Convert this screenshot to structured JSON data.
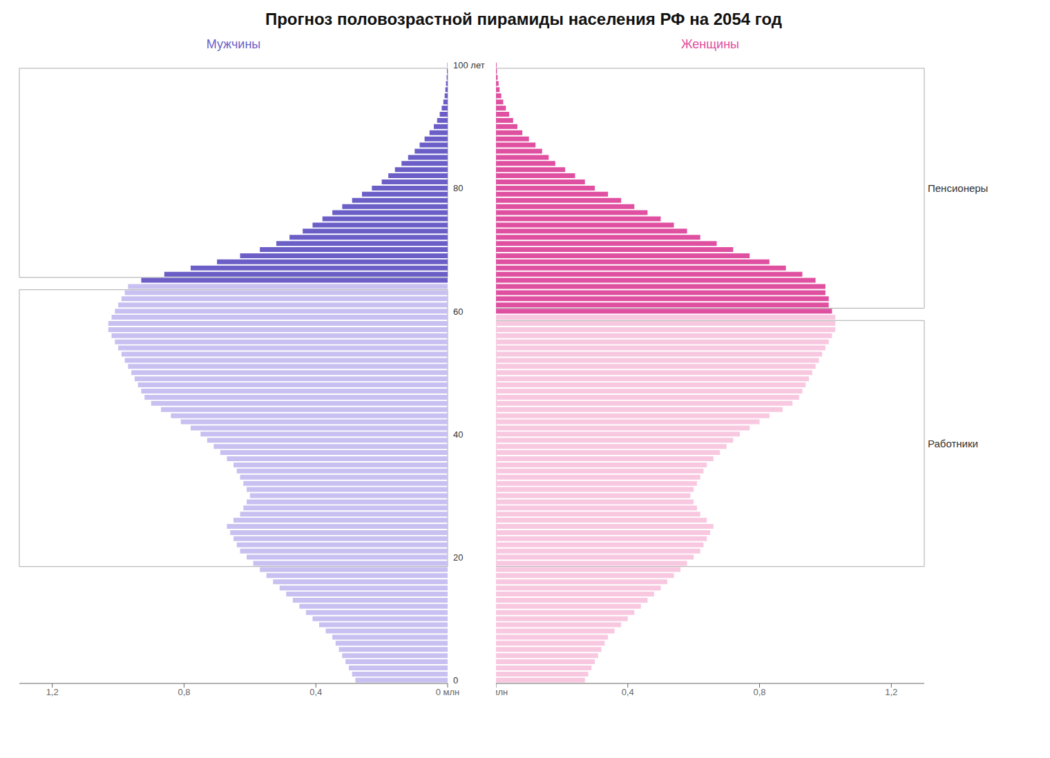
{
  "chart_data": {
    "type": "bar",
    "orientation": "horizontal",
    "title": "Прогноз половозрастной пирамиды населения РФ на 2054 год",
    "categories": [
      "0",
      null,
      null,
      null,
      null,
      null,
      null,
      null,
      null,
      null,
      null,
      null,
      null,
      null,
      null,
      null,
      null,
      null,
      null,
      null,
      "20",
      null,
      null,
      null,
      null,
      null,
      null,
      null,
      null,
      null,
      null,
      null,
      null,
      null,
      null,
      null,
      null,
      null,
      null,
      null,
      "40",
      null,
      null,
      null,
      null,
      null,
      null,
      null,
      null,
      null,
      null,
      null,
      null,
      null,
      null,
      null,
      null,
      null,
      null,
      null,
      "60",
      null,
      null,
      null,
      null,
      null,
      null,
      null,
      null,
      null,
      null,
      null,
      null,
      null,
      null,
      null,
      null,
      null,
      null,
      null,
      "80",
      null,
      null,
      null,
      null,
      null,
      null,
      null,
      null,
      null,
      null,
      null,
      null,
      null,
      null,
      null,
      null,
      null,
      null,
      null,
      "100 лет"
    ],
    "xlim": [
      0,
      1.3
    ],
    "xticks": [
      {
        "value": 0.0,
        "label": "0 млн"
      },
      {
        "value": 0.4,
        "label": "0,4"
      },
      {
        "value": 0.8,
        "label": "0,8"
      },
      {
        "value": 1.2,
        "label": "1,2"
      }
    ],
    "series": [
      {
        "name": "Мужчины",
        "color": "#6b5fc7",
        "values": [
          0.28,
          0.29,
          0.3,
          0.31,
          0.32,
          0.33,
          0.34,
          0.35,
          0.37,
          0.39,
          0.41,
          0.43,
          0.45,
          0.47,
          0.49,
          0.51,
          0.53,
          0.55,
          0.57,
          0.59,
          0.61,
          0.63,
          0.64,
          0.65,
          0.66,
          0.67,
          0.65,
          0.63,
          0.62,
          0.61,
          0.6,
          0.61,
          0.62,
          0.63,
          0.64,
          0.65,
          0.67,
          0.69,
          0.71,
          0.73,
          0.75,
          0.78,
          0.81,
          0.84,
          0.87,
          0.9,
          0.92,
          0.93,
          0.94,
          0.95,
          0.96,
          0.97,
          0.98,
          0.99,
          1.0,
          1.01,
          1.02,
          1.03,
          1.03,
          1.02,
          1.01,
          1.0,
          0.99,
          0.98,
          0.97,
          0.93,
          0.86,
          0.78,
          0.7,
          0.63,
          0.57,
          0.52,
          0.48,
          0.44,
          0.41,
          0.38,
          0.35,
          0.32,
          0.29,
          0.26,
          0.23,
          0.2,
          0.18,
          0.16,
          0.14,
          0.12,
          0.1,
          0.085,
          0.07,
          0.055,
          0.042,
          0.032,
          0.024,
          0.018,
          0.013,
          0.009,
          0.007,
          0.005,
          0.003,
          0.002,
          0.001
        ],
        "colors": [
          "#c8c0f0",
          "#c8c0f0",
          "#c8c0f0",
          "#c8c0f0",
          "#c8c0f0",
          "#c8c0f0",
          "#c8c0f0",
          "#c8c0f0",
          "#c8c0f0",
          "#c8c0f0",
          "#c8c0f0",
          "#c8c0f0",
          "#c8c0f0",
          "#c8c0f0",
          "#c8c0f0",
          "#c8c0f0",
          "#c8c0f0",
          "#c8c0f0",
          "#c8c0f0",
          "#c8c0f0",
          "#c8c0f0",
          "#c8c0f0",
          "#c8c0f0",
          "#c8c0f0",
          "#c8c0f0",
          "#c8c0f0",
          "#c8c0f0",
          "#c8c0f0",
          "#c8c0f0",
          "#c8c0f0",
          "#c8c0f0",
          "#c8c0f0",
          "#c8c0f0",
          "#c8c0f0",
          "#c8c0f0",
          "#c8c0f0",
          "#c8c0f0",
          "#c8c0f0",
          "#c8c0f0",
          "#c8c0f0",
          "#c8c0f0",
          "#c8c0f0",
          "#c8c0f0",
          "#c8c0f0",
          "#c8c0f0",
          "#c8c0f0",
          "#c8c0f0",
          "#c8c0f0",
          "#c8c0f0",
          "#c8c0f0",
          "#c8c0f0",
          "#c8c0f0",
          "#c8c0f0",
          "#c8c0f0",
          "#c8c0f0",
          "#c8c0f0",
          "#c8c0f0",
          "#c8c0f0",
          "#c8c0f0",
          "#c8c0f0",
          "#c8c0f0",
          "#c8c0f0",
          "#c8c0f0",
          "#c8c0f0",
          "#c8c0f0",
          "#6b5fc7",
          "#6b5fc7",
          "#6b5fc7",
          "#6b5fc7",
          "#6b5fc7",
          "#6b5fc7",
          "#6b5fc7",
          "#6b5fc7",
          "#6b5fc7",
          "#6b5fc7",
          "#6b5fc7",
          "#6b5fc7",
          "#6b5fc7",
          "#6b5fc7",
          "#6b5fc7",
          "#6b5fc7",
          "#6b5fc7",
          "#6b5fc7",
          "#6b5fc7",
          "#6b5fc7",
          "#6b5fc7",
          "#6b5fc7",
          "#6b5fc7",
          "#6b5fc7",
          "#6b5fc7",
          "#6b5fc7",
          "#6b5fc7",
          "#6b5fc7",
          "#6b5fc7",
          "#6b5fc7",
          "#6b5fc7",
          "#6b5fc7",
          "#6b5fc7",
          "#6b5fc7",
          "#6b5fc7",
          "#6b5fc7"
        ]
      },
      {
        "name": "Женщины",
        "color": "#e050a0",
        "values": [
          0.27,
          0.28,
          0.29,
          0.3,
          0.31,
          0.32,
          0.33,
          0.34,
          0.36,
          0.38,
          0.4,
          0.42,
          0.44,
          0.46,
          0.48,
          0.5,
          0.52,
          0.54,
          0.56,
          0.58,
          0.6,
          0.62,
          0.63,
          0.64,
          0.65,
          0.66,
          0.64,
          0.62,
          0.61,
          0.6,
          0.59,
          0.6,
          0.61,
          0.62,
          0.63,
          0.64,
          0.66,
          0.68,
          0.7,
          0.72,
          0.74,
          0.77,
          0.8,
          0.83,
          0.87,
          0.9,
          0.92,
          0.93,
          0.94,
          0.95,
          0.96,
          0.97,
          0.98,
          0.99,
          1.0,
          1.01,
          1.02,
          1.03,
          1.03,
          1.03,
          1.02,
          1.01,
          1.01,
          1.0,
          1.0,
          0.97,
          0.93,
          0.88,
          0.83,
          0.77,
          0.72,
          0.67,
          0.62,
          0.58,
          0.54,
          0.5,
          0.46,
          0.42,
          0.38,
          0.34,
          0.3,
          0.27,
          0.24,
          0.21,
          0.18,
          0.16,
          0.14,
          0.12,
          0.1,
          0.08,
          0.065,
          0.052,
          0.04,
          0.03,
          0.022,
          0.016,
          0.011,
          0.008,
          0.005,
          0.003,
          0.002
        ],
        "colors": [
          "#f8c8e0",
          "#f8c8e0",
          "#f8c8e0",
          "#f8c8e0",
          "#f8c8e0",
          "#f8c8e0",
          "#f8c8e0",
          "#f8c8e0",
          "#f8c8e0",
          "#f8c8e0",
          "#f8c8e0",
          "#f8c8e0",
          "#f8c8e0",
          "#f8c8e0",
          "#f8c8e0",
          "#f8c8e0",
          "#f8c8e0",
          "#f8c8e0",
          "#f8c8e0",
          "#f8c8e0",
          "#f8c8e0",
          "#f8c8e0",
          "#f8c8e0",
          "#f8c8e0",
          "#f8c8e0",
          "#f8c8e0",
          "#f8c8e0",
          "#f8c8e0",
          "#f8c8e0",
          "#f8c8e0",
          "#f8c8e0",
          "#f8c8e0",
          "#f8c8e0",
          "#f8c8e0",
          "#f8c8e0",
          "#f8c8e0",
          "#f8c8e0",
          "#f8c8e0",
          "#f8c8e0",
          "#f8c8e0",
          "#f8c8e0",
          "#f8c8e0",
          "#f8c8e0",
          "#f8c8e0",
          "#f8c8e0",
          "#f8c8e0",
          "#f8c8e0",
          "#f8c8e0",
          "#f8c8e0",
          "#f8c8e0",
          "#f8c8e0",
          "#f8c8e0",
          "#f8c8e0",
          "#f8c8e0",
          "#f8c8e0",
          "#f8c8e0",
          "#f8c8e0",
          "#f8c8e0",
          "#f8c8e0",
          "#f8c8e0",
          "#e050a0",
          "#e050a0",
          "#e050a0",
          "#e050a0",
          "#e050a0",
          "#e050a0",
          "#e050a0",
          "#e050a0",
          "#e050a0",
          "#e050a0",
          "#e050a0",
          "#e050a0",
          "#e050a0",
          "#e050a0",
          "#e050a0",
          "#e050a0",
          "#e050a0",
          "#e050a0",
          "#e050a0",
          "#e050a0",
          "#e050a0",
          "#e050a0",
          "#e050a0",
          "#e050a0",
          "#e050a0",
          "#e050a0",
          "#e050a0",
          "#e050a0",
          "#e050a0",
          "#e050a0",
          "#e050a0",
          "#e050a0",
          "#e050a0",
          "#e050a0",
          "#e050a0",
          "#e050a0",
          "#e050a0",
          "#e050a0",
          "#e050a0",
          "#e050a0",
          "#e050a0"
        ]
      }
    ],
    "annotations": [
      {
        "text": "Пенсионеры",
        "ranges": [
          [
            65,
            100
          ],
          [
            60,
            100
          ]
        ]
      },
      {
        "text": "Работники",
        "ranges": [
          [
            18,
            64
          ],
          [
            18,
            59
          ]
        ]
      }
    ]
  }
}
